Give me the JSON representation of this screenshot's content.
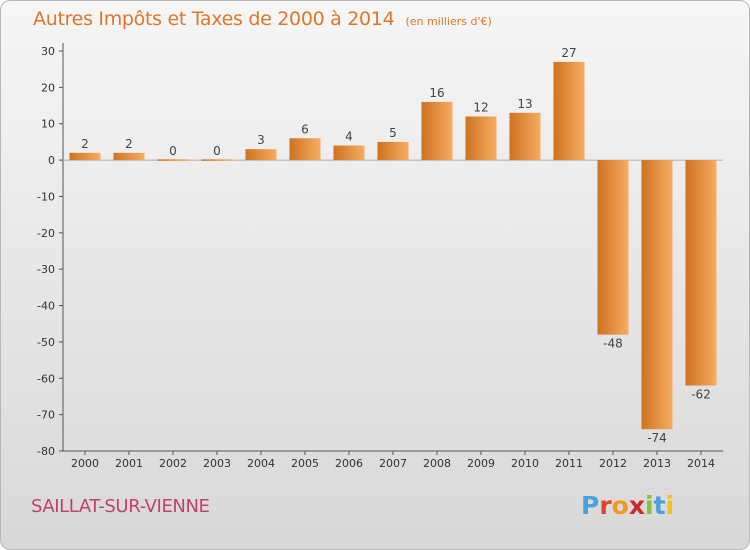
{
  "header": {
    "title": "Autres Impôts et Taxes de 2000 à 2014",
    "unit": "(en milliers d'€)"
  },
  "footer": {
    "commune": "SAILLAT-SUR-VIENNE"
  },
  "logo": {
    "text": "Proxiti",
    "letter_colors": [
      "#4aa0d8",
      "#e2452d",
      "#f29a1f",
      "#cc2a2a",
      "#8bbf3a",
      "#4aa0d8",
      "#f2c21f"
    ]
  },
  "colors": {
    "bar_light": "#f7ad63",
    "bar_dark": "#cf7220",
    "axis": "#555555",
    "grid": "#d0d0d0",
    "title": "#e0762a",
    "commune": "#c0416a"
  },
  "chart_data": {
    "type": "bar",
    "title": "Autres Impôts et Taxes de 2000 à 2014",
    "subtitle": "(en milliers d'€)",
    "xlabel": "",
    "ylabel": "",
    "categories": [
      "2000",
      "2001",
      "2002",
      "2003",
      "2004",
      "2005",
      "2006",
      "2007",
      "2008",
      "2009",
      "2010",
      "2011",
      "2012",
      "2013",
      "2014"
    ],
    "values": [
      2,
      2,
      0,
      0,
      3,
      6,
      4,
      5,
      16,
      12,
      13,
      27,
      -48,
      -74,
      -62
    ],
    "ylim": [
      -80,
      30
    ],
    "yticks": [
      30,
      20,
      10,
      0,
      -10,
      -20,
      -30,
      -40,
      -50,
      -60,
      -70,
      -80
    ],
    "grid": false,
    "legend": "none"
  }
}
